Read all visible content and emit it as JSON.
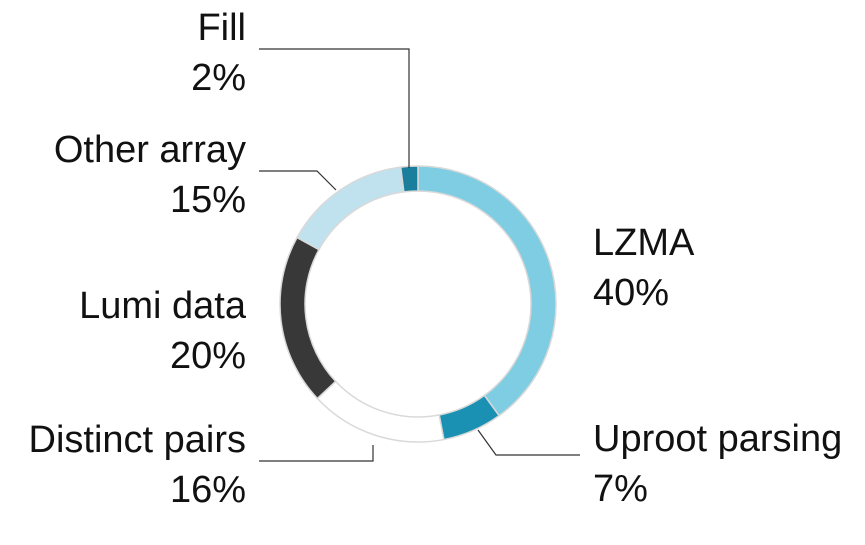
{
  "chart_data": {
    "type": "pie",
    "donut": true,
    "categories": [
      "LZMA",
      "Uproot parsing",
      "Distinct pairs",
      "Lumi data",
      "Other array",
      "Fill"
    ],
    "values": [
      40,
      7,
      16,
      20,
      15,
      2
    ],
    "value_labels": [
      "40%",
      "7%",
      "16%",
      "20%",
      "15%",
      "2%"
    ],
    "colors": [
      "#7ecde3",
      "#1a91b2",
      "#ffffff",
      "#383838",
      "#bfe2ee",
      "#1a7f9c"
    ],
    "title": "",
    "legend": "none"
  }
}
